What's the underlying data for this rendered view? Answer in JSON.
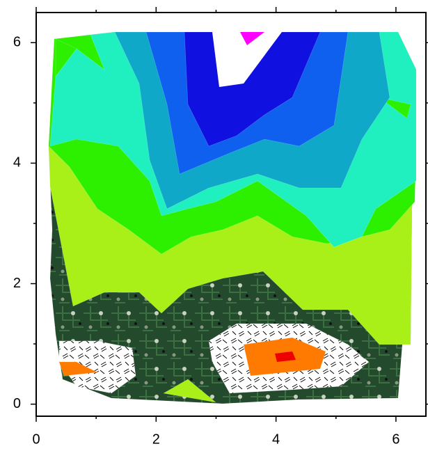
{
  "chart_data": {
    "type": "contour",
    "xlim": [
      0,
      6.5
    ],
    "ylim": [
      -0.2,
      6.5
    ],
    "xticks": [
      0,
      2,
      4,
      6
    ],
    "yticks": [
      0,
      2,
      4,
      6
    ]
  }
}
